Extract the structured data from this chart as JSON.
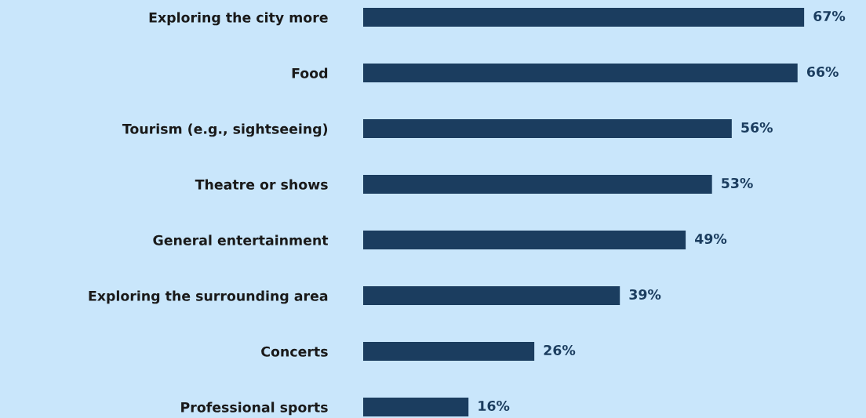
{
  "chart_data": {
    "type": "bar",
    "orientation": "horizontal",
    "categories": [
      "Exploring the city more",
      "Food",
      "Tourism (e.g., sightseeing)",
      "Theatre or shows",
      "General entertainment",
      "Exploring the surrounding area",
      "Concerts",
      "Professional sports"
    ],
    "values": [
      67,
      66,
      56,
      53,
      49,
      39,
      26,
      16
    ],
    "value_labels": [
      "67%",
      "66%",
      "56%",
      "53%",
      "49%",
      "39%",
      "26%",
      "16%"
    ],
    "color": "#1b3d5f",
    "xlim": [
      0,
      76.4
    ],
    "tick_labels": "y",
    "grid": false,
    "legend": false
  }
}
